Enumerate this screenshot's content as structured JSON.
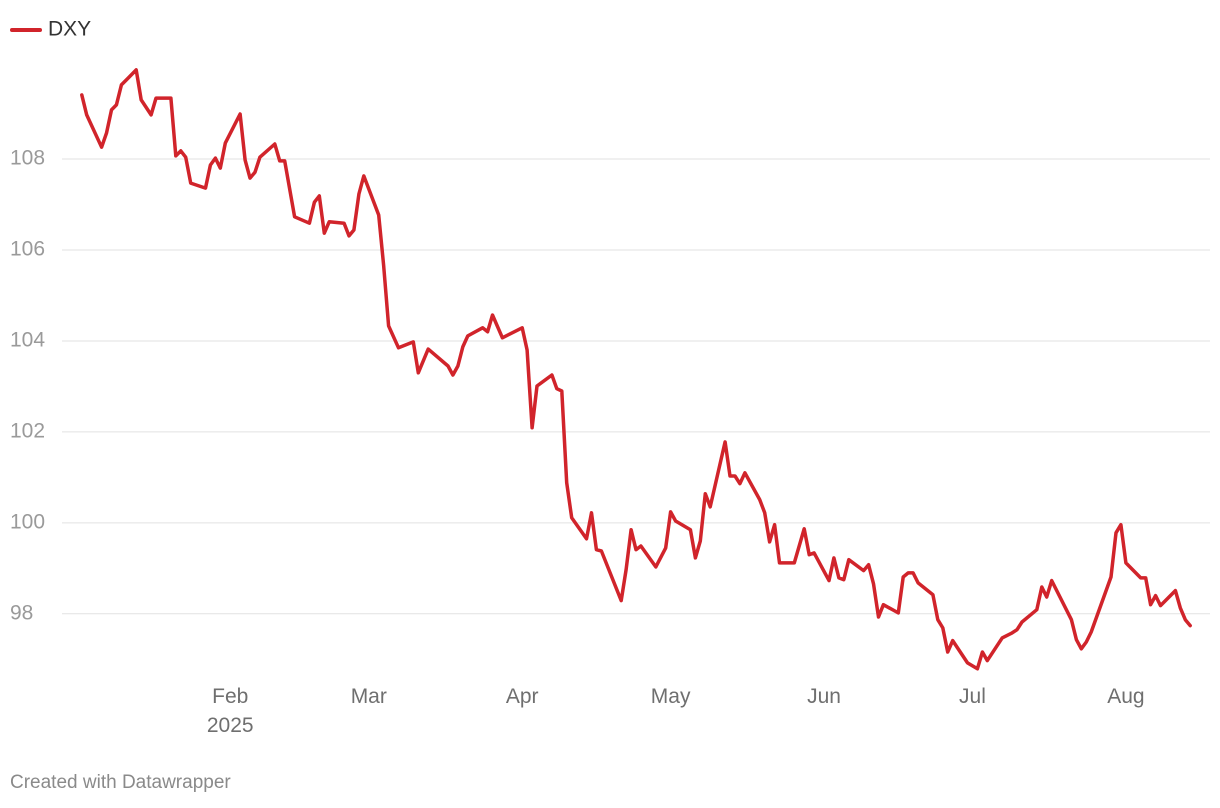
{
  "chart_data": {
    "type": "line",
    "credit": "Created with Datawrapper",
    "x": [
      2,
      3,
      6,
      7,
      8,
      9,
      10,
      13,
      14,
      16,
      17,
      20,
      21,
      22,
      23,
      24,
      27,
      28,
      29,
      30,
      31,
      34,
      35,
      36,
      37,
      38,
      41,
      42,
      43,
      45,
      48,
      49,
      50,
      51,
      52,
      55,
      56,
      57,
      58,
      59,
      62,
      63,
      64,
      66,
      69,
      70,
      72,
      76,
      77,
      78,
      79,
      80,
      83,
      84,
      85,
      87,
      91,
      92,
      93,
      94,
      97,
      98,
      99,
      100,
      101,
      104,
      105,
      106,
      107,
      111,
      112,
      113,
      114,
      115,
      118,
      120,
      121,
      122,
      125,
      126,
      127,
      128,
      129,
      132,
      133,
      134,
      135,
      136,
      139,
      140,
      141,
      142,
      143,
      146,
      148,
      149,
      150,
      153,
      154,
      155,
      156,
      157,
      160,
      161,
      162,
      163,
      164,
      167,
      168,
      169,
      170,
      171,
      174,
      175,
      176,
      177,
      178,
      181,
      183,
      184,
      185,
      188,
      190,
      191,
      192,
      195,
      196,
      197,
      198,
      202,
      203,
      204,
      205,
      206,
      210,
      211,
      212,
      213,
      216,
      217,
      218,
      219,
      220,
      223,
      224,
      225,
      226
    ],
    "series": [
      {
        "name": "DXY",
        "color": "#d1242b",
        "values": [
          109.41,
          108.97,
          108.26,
          108.57,
          109.08,
          109.19,
          109.63,
          109.96,
          109.3,
          108.97,
          109.34,
          109.34,
          108.07,
          108.18,
          108.04,
          107.47,
          107.36,
          107.87,
          108.02,
          107.8,
          108.35,
          108.99,
          107.98,
          107.58,
          107.71,
          108.04,
          108.33,
          107.96,
          107.96,
          106.73,
          106.59,
          107.05,
          107.19,
          106.37,
          106.62,
          106.59,
          106.31,
          106.44,
          107.23,
          107.63,
          106.77,
          105.67,
          104.33,
          103.85,
          103.98,
          103.3,
          103.82,
          103.45,
          103.25,
          103.45,
          103.87,
          104.11,
          104.29,
          104.2,
          104.57,
          104.07,
          104.29,
          103.8,
          102.09,
          103.01,
          103.25,
          102.95,
          102.9,
          100.88,
          100.11,
          99.65,
          100.22,
          99.41,
          99.38,
          98.29,
          98.97,
          99.85,
          99.41,
          99.49,
          99.03,
          99.45,
          100.24,
          100.04,
          99.85,
          99.23,
          99.6,
          100.64,
          100.35,
          101.78,
          101.03,
          101.03,
          100.86,
          101.1,
          100.51,
          100.22,
          99.58,
          99.96,
          99.12,
          99.12,
          99.87,
          99.3,
          99.34,
          98.73,
          99.23,
          98.79,
          98.75,
          99.19,
          98.95,
          99.08,
          98.66,
          97.93,
          98.2,
          98.02,
          98.81,
          98.9,
          98.9,
          98.68,
          98.42,
          97.87,
          97.69,
          97.16,
          97.41,
          96.92,
          96.79,
          97.16,
          96.97,
          97.47,
          97.58,
          97.65,
          97.82,
          98.09,
          98.59,
          98.37,
          98.73,
          97.87,
          97.43,
          97.23,
          97.38,
          97.6,
          98.81,
          99.78,
          99.96,
          99.12,
          98.79,
          98.79,
          98.2,
          98.4,
          98.18,
          98.51,
          98.13,
          97.87,
          97.74
        ]
      }
    ],
    "xlim": [
      -2,
      230
    ],
    "xticks": [
      {
        "value": 32,
        "label": "Feb\n2025"
      },
      {
        "value": 60,
        "label": "Mar"
      },
      {
        "value": 91,
        "label": "Apr"
      },
      {
        "value": 121,
        "label": "May"
      },
      {
        "value": 152,
        "label": "Jun"
      },
      {
        "value": 182,
        "label": "Jul"
      },
      {
        "value": 213,
        "label": "Aug"
      }
    ],
    "ylim": [
      96.5,
      110.2
    ],
    "yticks": [
      98,
      100,
      102,
      104,
      106,
      108
    ],
    "grid": true,
    "legend": "top-left"
  }
}
